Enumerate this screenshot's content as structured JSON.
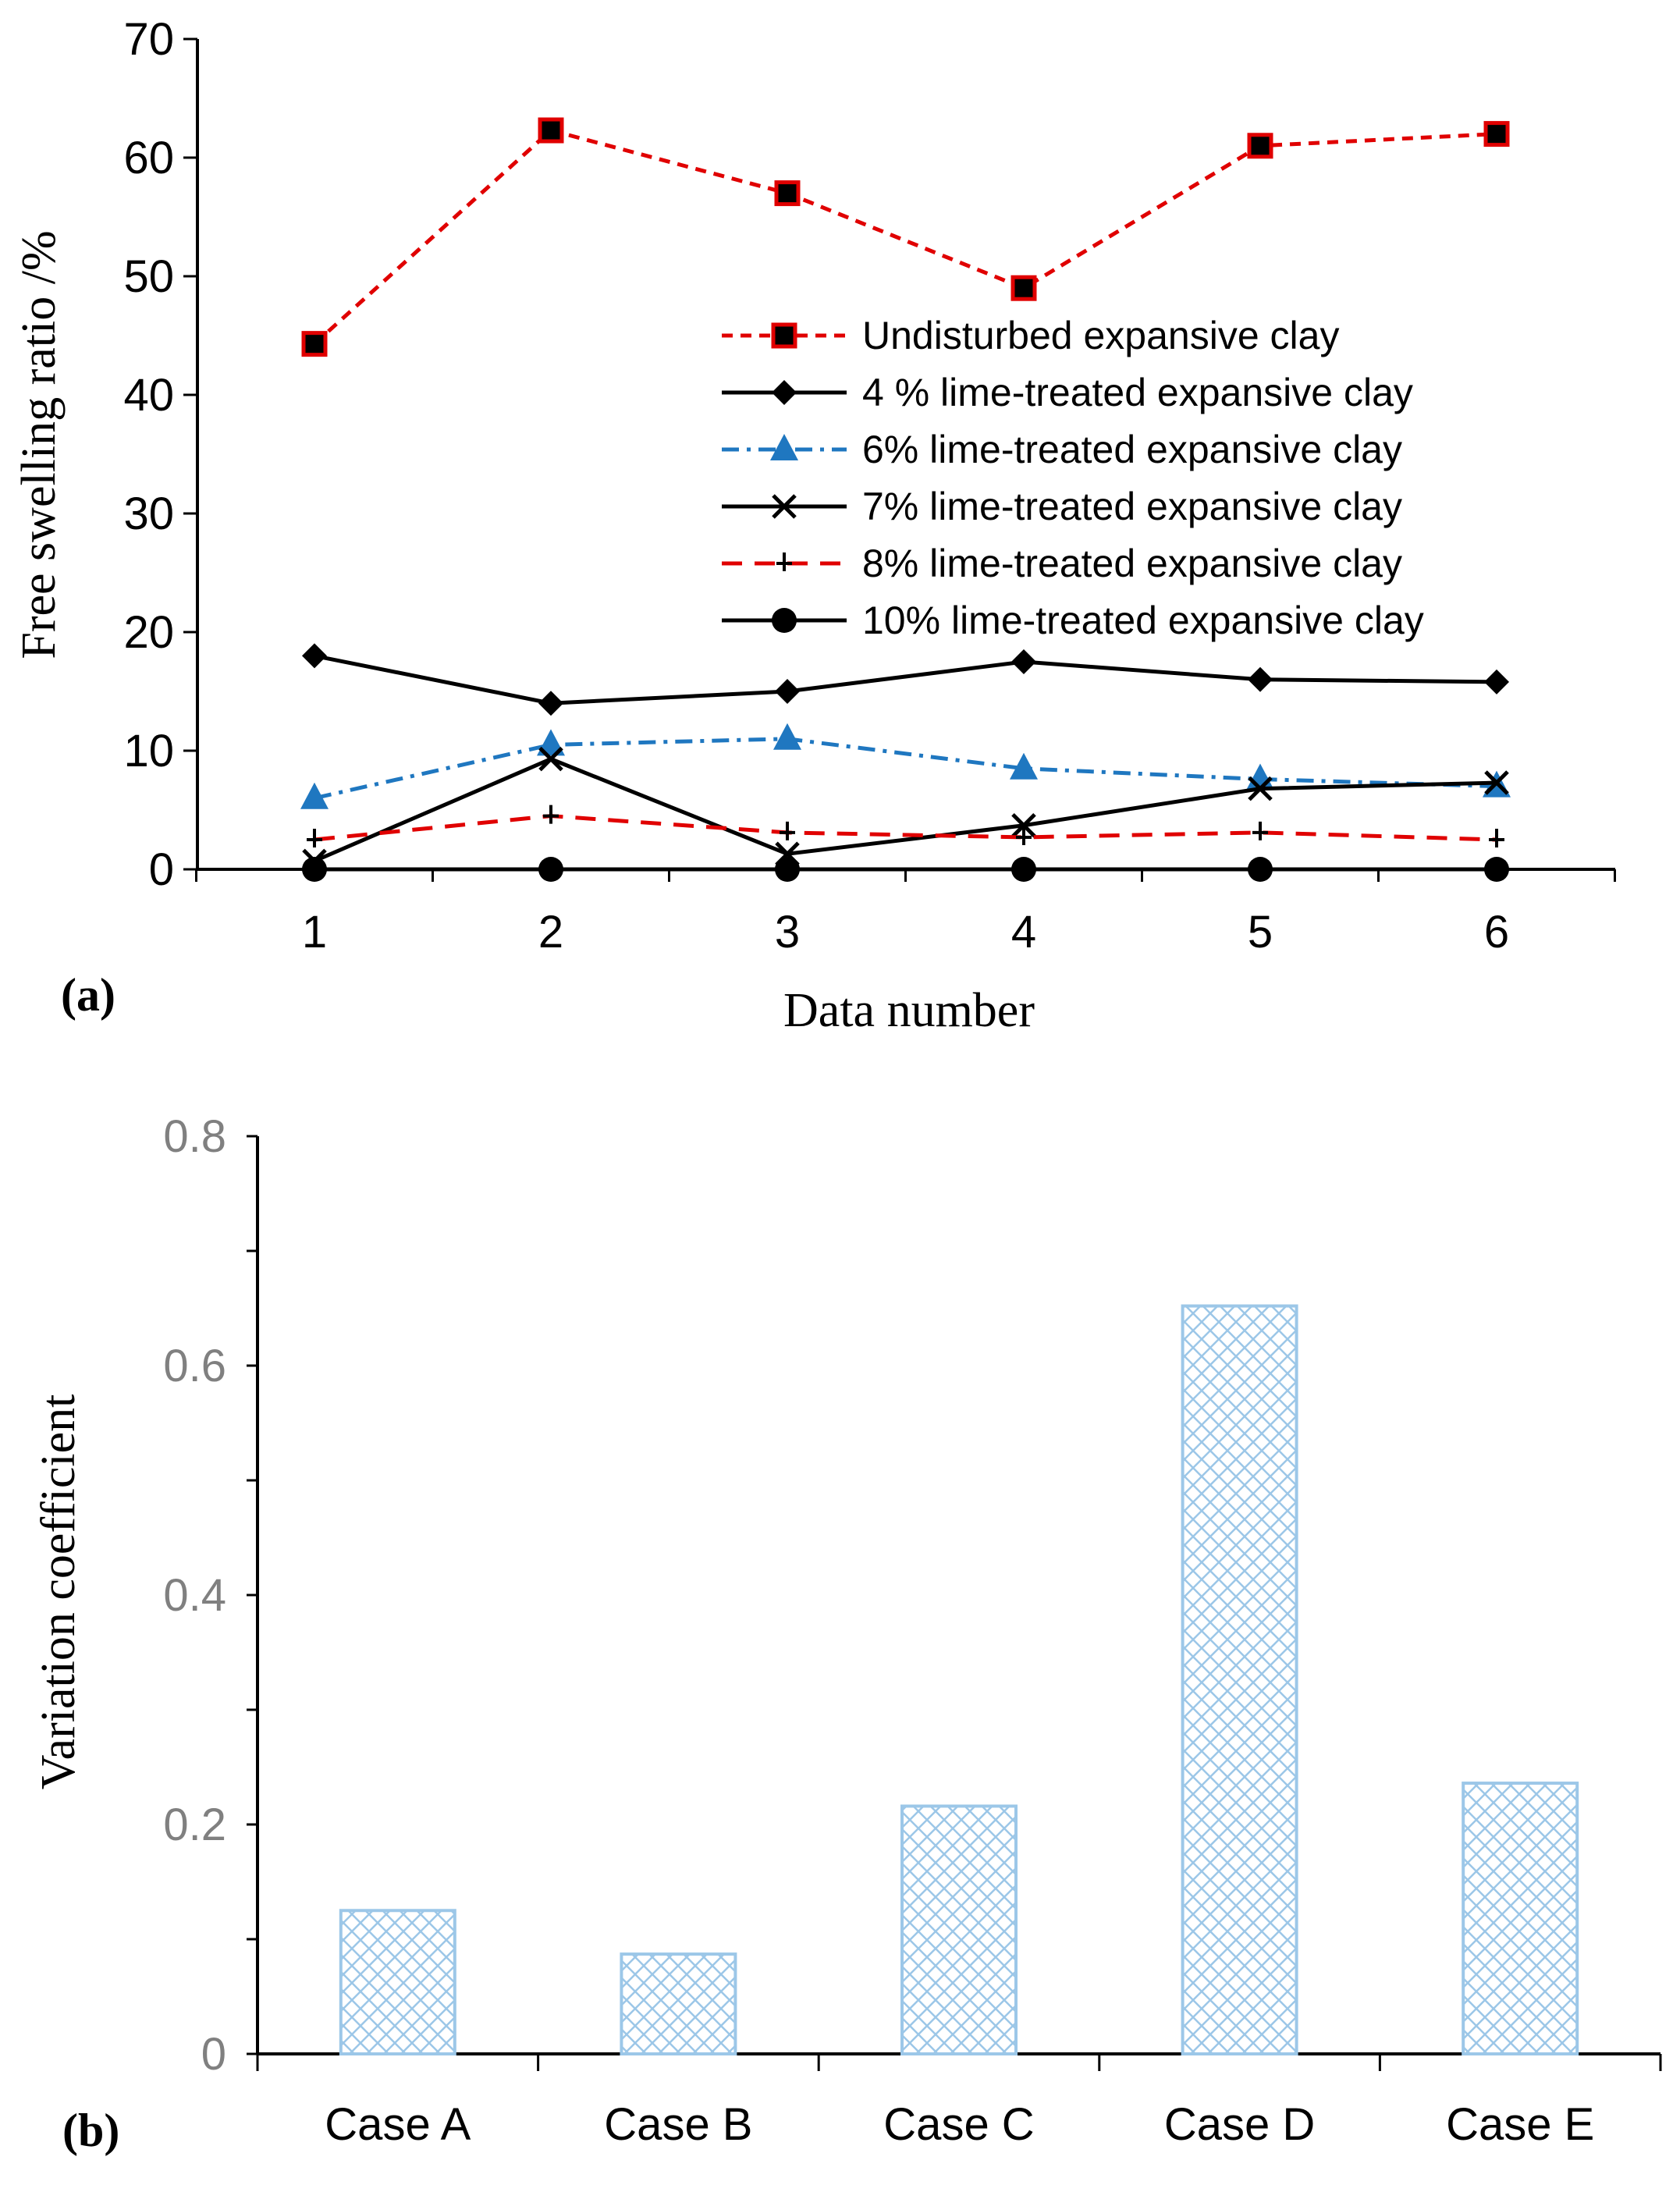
{
  "chart_data": [
    {
      "type": "line",
      "panel_label": "(a)",
      "xlabel": "Data number",
      "ylabel": "Free swelling ratio /%",
      "x": [
        1,
        2,
        3,
        4,
        5,
        6
      ],
      "x_tick_labels": [
        "1",
        "2",
        "3",
        "4",
        "5",
        "6"
      ],
      "ylim": [
        0,
        70
      ],
      "y_tick_labels": [
        "0",
        "10",
        "20",
        "30",
        "40",
        "50",
        "60",
        "70"
      ],
      "legend_position": "center-right",
      "series": [
        {
          "name": "Undisturbed expansive clay",
          "values": [
            44.3,
            62.3,
            57.0,
            49.0,
            61.0,
            62.0
          ],
          "color": "#e00000",
          "marker": "square"
        },
        {
          "name": "4 % lime-treated expansive clay",
          "values": [
            18.0,
            14.0,
            15.0,
            17.5,
            16.0,
            15.8
          ],
          "color": "#000000",
          "marker": "diamond"
        },
        {
          "name": "6% lime-treated expansive clay",
          "values": [
            6.0,
            10.5,
            11.0,
            8.5,
            7.6,
            7.0
          ],
          "color": "#1f77c0",
          "marker": "triangle"
        },
        {
          "name": "7% lime-treated expansive clay",
          "values": [
            0.7,
            9.3,
            1.3,
            3.7,
            6.8,
            7.3
          ],
          "color": "#000000",
          "marker": "x"
        },
        {
          "name": "8% lime-treated expansive clay",
          "values": [
            2.5,
            4.5,
            3.1,
            2.7,
            3.1,
            2.5
          ],
          "color": "#e00000",
          "marker": "plus"
        },
        {
          "name": "10% lime-treated expansive clay",
          "values": [
            0,
            0,
            0,
            0,
            0,
            0
          ],
          "color": "#000000",
          "marker": "circle"
        }
      ]
    },
    {
      "type": "bar",
      "panel_label": "(b)",
      "ylabel": "Variation coefficient",
      "xlabel": "",
      "categories": [
        "Case A",
        "Case B",
        "Case C",
        "Case D",
        "Case E"
      ],
      "values": [
        0.125,
        0.087,
        0.216,
        0.652,
        0.236
      ],
      "ylim": [
        0,
        0.8
      ],
      "y_tick_labels": [
        "0",
        "0.2",
        "0.4",
        "0.6",
        "0.8"
      ],
      "bar_color": "#9cc7e8"
    }
  ]
}
